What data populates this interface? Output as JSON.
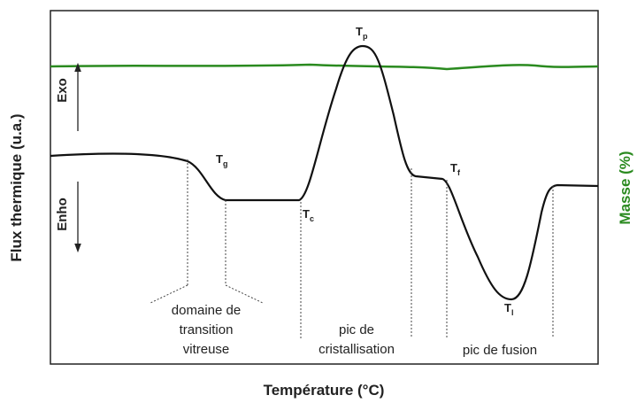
{
  "axes": {
    "x_label": "Température (°C)",
    "y_label": "Flux thermique (u.a.)",
    "y2_label": "Masse (%)"
  },
  "directions": {
    "up": "Exo",
    "down": "Enho"
  },
  "points": [
    {
      "main": "T",
      "sub": "g"
    },
    {
      "main": "T",
      "sub": "c"
    },
    {
      "main": "T",
      "sub": "p"
    },
    {
      "main": "T",
      "sub": "f"
    },
    {
      "main": "T",
      "sub": "l"
    }
  ],
  "regions": [
    {
      "lines": [
        "domaine de",
        "transition",
        "vitreuse"
      ]
    },
    {
      "lines": [
        "pic de",
        "cristallisation"
      ]
    },
    {
      "lines": [
        "pic de fusion"
      ]
    }
  ]
}
